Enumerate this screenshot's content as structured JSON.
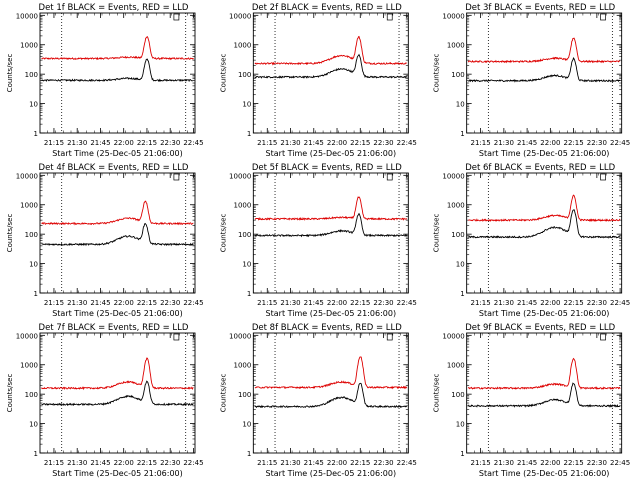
{
  "colors": {
    "events": "#000000",
    "lld": "#dd0000",
    "axis": "#000000",
    "background": "#ffffff"
  },
  "common": {
    "ylabel": "Counts/sec",
    "xlabel": "Start Time (25-Dec-05 21:06:00)",
    "x_tick_labels": [
      "21:15",
      "21:30",
      "21:45",
      "22:00",
      "22:15",
      "22:30",
      "22:45"
    ],
    "y_tick_labels": [
      "1",
      "10",
      "100",
      "1000",
      "10000"
    ],
    "y_scale": "log",
    "ylim": [
      1,
      12000
    ],
    "xlim": [
      "21:06:00",
      "22:46:00"
    ],
    "dotted_markers": [
      "21:20:00",
      "22:40:00"
    ],
    "small_box_marker": "22:34:00"
  },
  "chart_data": [
    {
      "type": "line",
      "title": "Det 1f BLACK = Events, RED = LLD",
      "peak_time": "22:15:00",
      "series": [
        {
          "role": "events",
          "baseline": 62,
          "bump": 10,
          "peak": 330
        },
        {
          "role": "lld",
          "baseline": 340,
          "bump": 40,
          "peak": 1900
        }
      ]
    },
    {
      "type": "line",
      "title": "Det 2f BLACK = Events, RED = LLD",
      "peak_time": "22:14:00",
      "series": [
        {
          "role": "events",
          "baseline": 80,
          "bump": 70,
          "peak": 430
        },
        {
          "role": "lld",
          "baseline": 230,
          "bump": 200,
          "peak": 1800
        }
      ]
    },
    {
      "type": "line",
      "title": "Det 3f BLACK = Events, RED = LLD",
      "peak_time": "22:15:00",
      "series": [
        {
          "role": "events",
          "baseline": 60,
          "bump": 30,
          "peak": 330
        },
        {
          "role": "lld",
          "baseline": 270,
          "bump": 80,
          "peak": 1700
        }
      ]
    },
    {
      "type": "line",
      "title": "Det 4f BLACK = Events, RED = LLD",
      "peak_time": "22:14:00",
      "series": [
        {
          "role": "events",
          "baseline": 45,
          "bump": 40,
          "peak": 220
        },
        {
          "role": "lld",
          "baseline": 230,
          "bump": 120,
          "peak": 1300
        }
      ]
    },
    {
      "type": "line",
      "title": "Det 5f BLACK = Events, RED = LLD",
      "peak_time": "22:14:00",
      "series": [
        {
          "role": "events",
          "baseline": 90,
          "bump": 40,
          "peak": 470
        },
        {
          "role": "lld",
          "baseline": 330,
          "bump": 40,
          "peak": 1800
        }
      ]
    },
    {
      "type": "line",
      "title": "Det 6f BLACK = Events, RED = LLD",
      "peak_time": "22:15:00",
      "series": [
        {
          "role": "events",
          "baseline": 80,
          "bump": 90,
          "peak": 680
        },
        {
          "role": "lld",
          "baseline": 300,
          "bump": 130,
          "peak": 2000
        }
      ]
    },
    {
      "type": "line",
      "title": "Det 7f BLACK = Events, RED = LLD",
      "peak_time": "22:15:00",
      "series": [
        {
          "role": "events",
          "baseline": 45,
          "bump": 40,
          "peak": 260
        },
        {
          "role": "lld",
          "baseline": 160,
          "bump": 100,
          "peak": 1600
        }
      ]
    },
    {
      "type": "line",
      "title": "Det 8f BLACK = Events, RED = LLD",
      "peak_time": "22:15:00",
      "series": [
        {
          "role": "events",
          "baseline": 38,
          "bump": 40,
          "peak": 230
        },
        {
          "role": "lld",
          "baseline": 170,
          "bump": 90,
          "peak": 1900
        }
      ]
    },
    {
      "type": "line",
      "title": "Det 9f BLACK = Events, RED = LLD",
      "peak_time": "22:15:00",
      "series": [
        {
          "role": "events",
          "baseline": 40,
          "bump": 25,
          "peak": 230
        },
        {
          "role": "lld",
          "baseline": 160,
          "bump": 60,
          "peak": 1600
        }
      ]
    }
  ]
}
